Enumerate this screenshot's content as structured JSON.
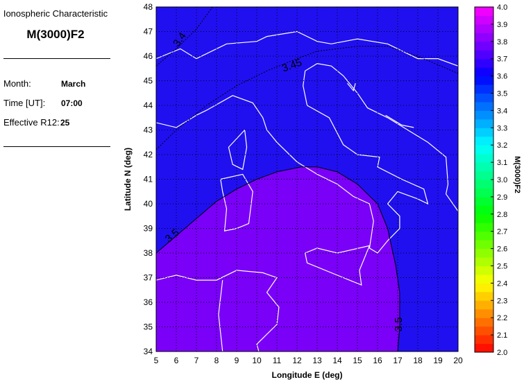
{
  "info": {
    "heading": "Ionospheric Characteristic",
    "characteristic": "M(3000)F2",
    "month_label": "Month:",
    "month": "March",
    "time_label": "Time [UT]:",
    "time": "07:00",
    "r12_label": "Effective R12:",
    "r12": "25"
  },
  "chart_data": {
    "type": "contour-map",
    "xlabel": "Longitude E (deg)",
    "ylabel": "Latitude N (deg)",
    "xlim": [
      5,
      20
    ],
    "ylim": [
      34,
      48
    ],
    "xticks": [
      5,
      6,
      7,
      8,
      9,
      10,
      11,
      12,
      13,
      14,
      15,
      16,
      17,
      18,
      19,
      20
    ],
    "yticks": [
      34,
      35,
      36,
      37,
      38,
      39,
      40,
      41,
      42,
      43,
      44,
      45,
      46,
      47,
      48
    ],
    "grid": true,
    "colorbar": {
      "label": "M(3000)F2",
      "range": [
        2.0,
        4.0
      ],
      "ticks": [
        "2.0",
        "2.1",
        "2.2",
        "2.3",
        "2.4",
        "2.5",
        "2.6",
        "2.7",
        "2.8",
        "2.9",
        "3.0",
        "3.1",
        "3.2",
        "3.3",
        "3.4",
        "3.5",
        "3.6",
        "3.7",
        "3.8",
        "3.9",
        "4.0"
      ]
    },
    "contours": [
      {
        "level": "3.4",
        "points": [
          [
            5,
            45.6
          ],
          [
            6,
            46.3
          ],
          [
            7,
            47.1
          ],
          [
            7.8,
            48
          ]
        ]
      },
      {
        "level": "3.45",
        "points": [
          [
            5,
            42.2
          ],
          [
            6,
            43
          ],
          [
            7.5,
            44
          ],
          [
            9,
            44.8
          ],
          [
            10.5,
            45.4
          ],
          [
            12,
            45.9
          ],
          [
            13,
            46.2
          ],
          [
            15,
            46.4
          ],
          [
            16.5,
            46.4
          ],
          [
            18,
            46
          ],
          [
            20,
            45.3
          ]
        ]
      },
      {
        "level": "3.5",
        "points": [
          [
            5,
            38
          ],
          [
            6,
            38.7
          ],
          [
            7,
            39.4
          ],
          [
            8,
            40.1
          ],
          [
            9,
            40.6
          ],
          [
            10,
            41
          ],
          [
            11,
            41.3
          ],
          [
            12.2,
            41.5
          ],
          [
            13,
            41.5
          ],
          [
            14,
            41.3
          ],
          [
            15,
            40.8
          ],
          [
            16,
            40
          ],
          [
            16.5,
            39
          ],
          [
            16.9,
            37.5
          ],
          [
            17.1,
            36.4
          ],
          [
            17.1,
            35
          ],
          [
            17,
            34
          ]
        ]
      }
    ],
    "fill_colors": {
      "below_3.5": "#2010f0",
      "above_3.5": "#7a00f8",
      "coastline": "#ffffff"
    }
  }
}
